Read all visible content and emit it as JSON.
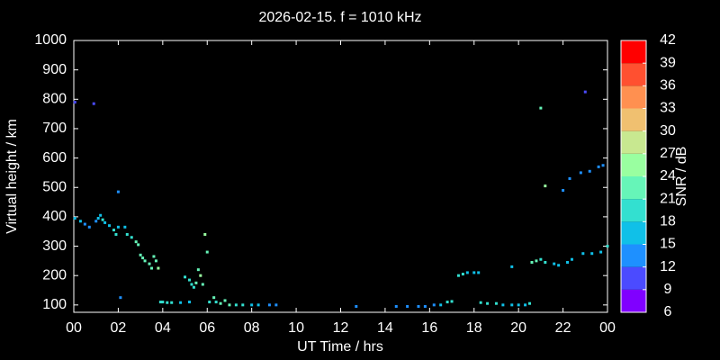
{
  "chart_data": {
    "type": "scatter",
    "title": "2026-02-15. f = 1010 kHz",
    "xlabel": "UT Time / hrs",
    "ylabel": "Virtual height / km",
    "xlim": [
      0,
      24
    ],
    "xticks": [
      {
        "value": 0,
        "label": "00"
      },
      {
        "value": 2,
        "label": "02"
      },
      {
        "value": 4,
        "label": "04"
      },
      {
        "value": 6,
        "label": "06"
      },
      {
        "value": 8,
        "label": "08"
      },
      10,
      12,
      14,
      16,
      18,
      20,
      22,
      {
        "value": 24,
        "label": "00"
      }
    ],
    "ylim": [
      75,
      1000
    ],
    "yticks": [
      100,
      200,
      300,
      400,
      500,
      600,
      700,
      800,
      900,
      1000
    ],
    "colorbar": {
      "label": "SNR / dB",
      "ticks": [
        6,
        9,
        12,
        15,
        18,
        21,
        24,
        27,
        30,
        33,
        36,
        39,
        42
      ],
      "colors": [
        "#8000ff",
        "#4b4bff",
        "#1e90ff",
        "#10c0e8",
        "#33e0d0",
        "#66f5b8",
        "#99ffa0",
        "#c8e890",
        "#f0c070",
        "#ff9050",
        "#ff5030",
        "#ff0000"
      ]
    },
    "series": [
      {
        "name": "SNR",
        "x": [
          0.05,
          0.9,
          0.05,
          0.3,
          0.5,
          0.7,
          1.0,
          1.1,
          1.2,
          1.3,
          1.4,
          1.6,
          1.8,
          1.9,
          2.0,
          2.0,
          2.1,
          2.3,
          2.4,
          2.6,
          2.8,
          2.9,
          3.0,
          3.1,
          3.2,
          3.4,
          3.5,
          3.6,
          3.7,
          3.8,
          3.9,
          4.0,
          4.2,
          4.4,
          4.8,
          5.0,
          5.2,
          5.2,
          5.3,
          5.4,
          5.5,
          5.6,
          5.7,
          5.8,
          5.9,
          6.0,
          6.1,
          6.4,
          6.3,
          6.6,
          6.8,
          7.0,
          7.3,
          7.6,
          8.0,
          8.3,
          8.8,
          9.1,
          12.7,
          14.5,
          15.0,
          15.5,
          15.8,
          16.2,
          16.5,
          16.8,
          17.0,
          17.3,
          17.5,
          17.7,
          18.0,
          18.2,
          18.3,
          18.6,
          19.0,
          19.3,
          19.7,
          19.7,
          20.0,
          20.3,
          20.5,
          20.6,
          20.8,
          21.0,
          21.2,
          21.0,
          21.2,
          21.6,
          21.8,
          22.0,
          22.2,
          22.3,
          22.4,
          22.8,
          22.9,
          23.0,
          23.2,
          23.3,
          23.6,
          23.8,
          23.7,
          24.0
        ],
        "y": [
          790,
          785,
          395,
          385,
          375,
          365,
          385,
          395,
          405,
          390,
          380,
          370,
          355,
          340,
          365,
          485,
          125,
          365,
          340,
          330,
          315,
          305,
          270,
          260,
          250,
          240,
          225,
          265,
          250,
          225,
          110,
          110,
          108,
          108,
          108,
          195,
          185,
          110,
          170,
          160,
          175,
          220,
          200,
          170,
          340,
          280,
          110,
          110,
          125,
          105,
          115,
          100,
          100,
          100,
          100,
          100,
          100,
          100,
          95,
          95,
          95,
          95,
          95,
          100,
          100,
          110,
          112,
          200,
          205,
          210,
          210,
          210,
          108,
          105,
          105,
          100,
          100,
          230,
          100,
          100,
          105,
          245,
          250,
          255,
          245,
          770,
          505,
          240,
          235,
          490,
          245,
          530,
          255,
          550,
          275,
          825,
          555,
          275,
          570,
          575,
          280,
          300
        ],
        "snr": [
          9,
          9,
          15,
          15,
          12,
          12,
          12,
          15,
          15,
          18,
          15,
          15,
          18,
          18,
          15,
          12,
          12,
          15,
          18,
          18,
          21,
          21,
          21,
          21,
          21,
          21,
          21,
          21,
          21,
          24,
          18,
          18,
          18,
          18,
          15,
          18,
          18,
          15,
          18,
          18,
          21,
          21,
          24,
          21,
          24,
          21,
          18,
          18,
          21,
          21,
          21,
          21,
          18,
          18,
          15,
          15,
          12,
          12,
          12,
          12,
          12,
          12,
          12,
          12,
          15,
          18,
          18,
          18,
          18,
          15,
          15,
          15,
          18,
          18,
          18,
          15,
          15,
          15,
          15,
          15,
          18,
          21,
          21,
          18,
          18,
          21,
          24,
          15,
          15,
          12,
          15,
          12,
          15,
          12,
          15,
          9,
          12,
          15,
          12,
          12,
          15,
          18
        ]
      }
    ]
  }
}
